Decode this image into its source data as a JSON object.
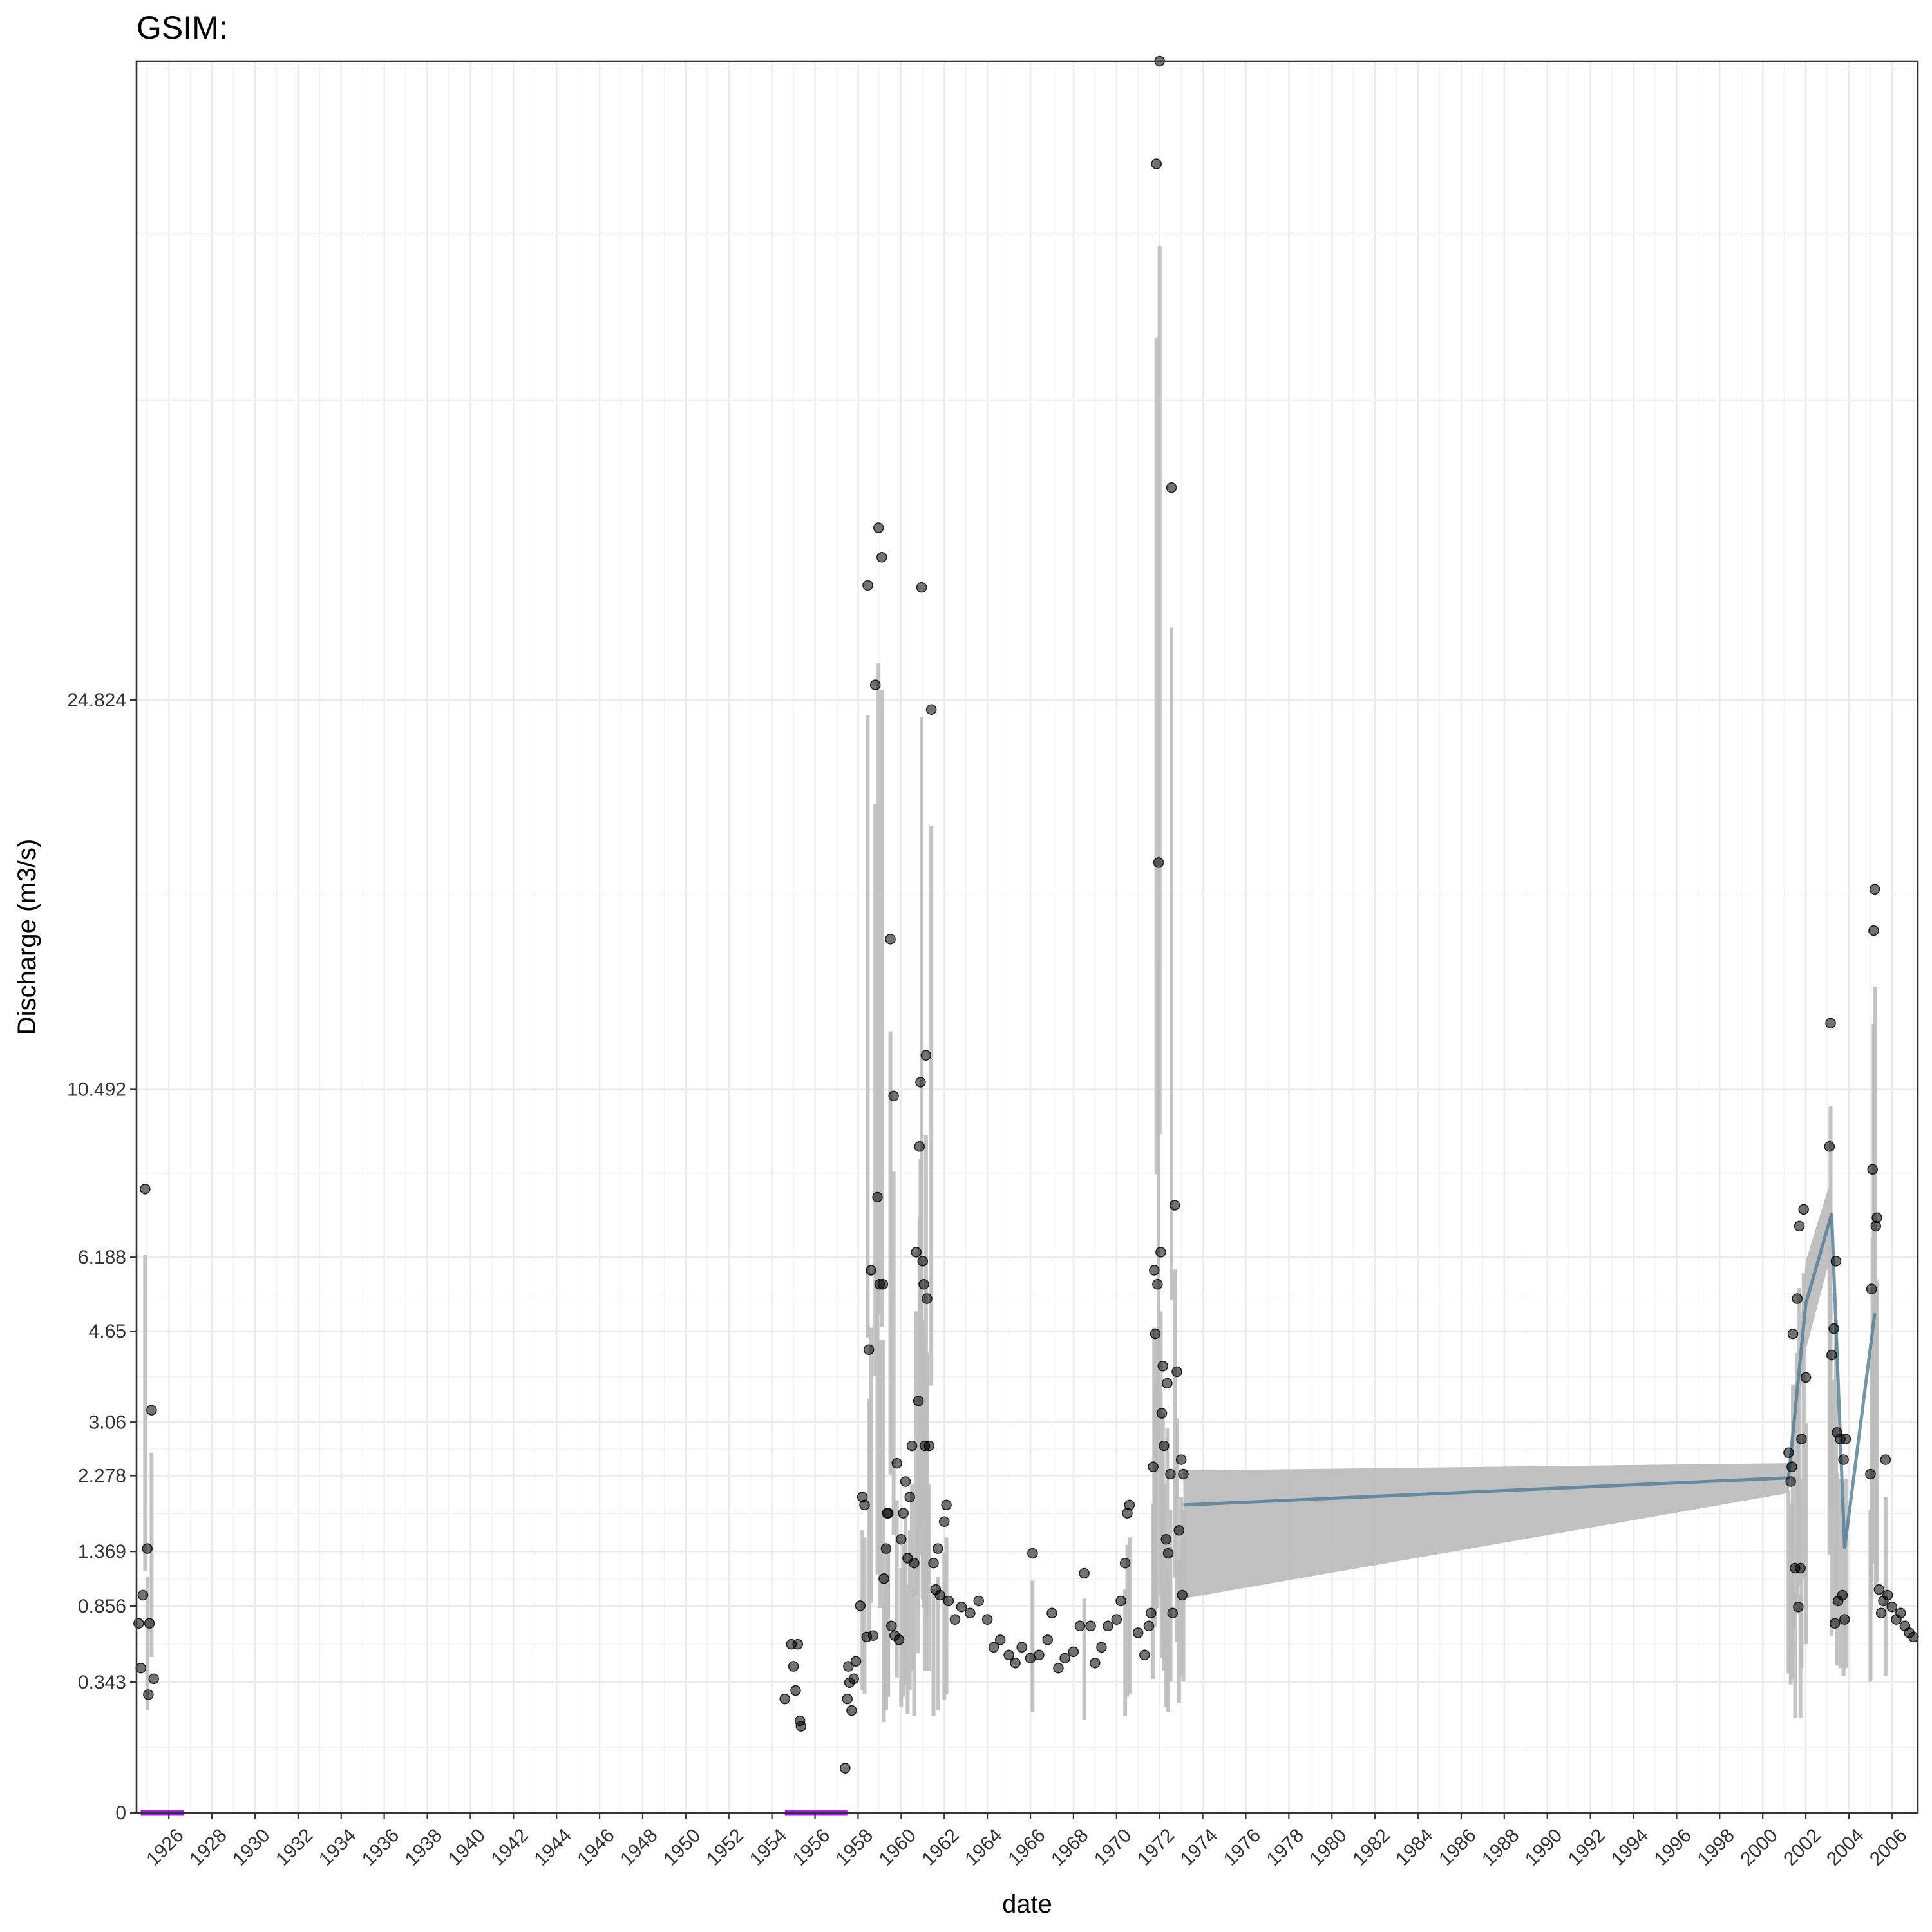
{
  "chart_data": {
    "type": "scatter",
    "title": "GSIM:",
    "xlabel": "date",
    "ylabel": "Discharge (m3/s)",
    "x_range": [
      1924.5,
      2007.2
    ],
    "y_scale": "sqrt",
    "y_range": [
      0,
      61.5
    ],
    "y_ticks": [
      0,
      0.343,
      0.856,
      1.369,
      2.278,
      3.06,
      4.65,
      6.188,
      10.492,
      24.824
    ],
    "x_ticks": [
      "1926",
      "1928",
      "1930",
      "1932",
      "1934",
      "1936",
      "1938",
      "1940",
      "1942",
      "1944",
      "1946",
      "1948",
      "1950",
      "1952",
      "1954",
      "1956",
      "1958",
      "1960",
      "1962",
      "1964",
      "1966",
      "1968",
      "1970",
      "1972",
      "1974",
      "1976",
      "1978",
      "1980",
      "1982",
      "1984",
      "1986",
      "1988",
      "1990",
      "1992",
      "1994",
      "1996",
      "1998",
      "2000",
      "2002",
      "2004",
      "2006"
    ],
    "grid": true,
    "legend": "none",
    "colors": {
      "points": "#000000",
      "ribbon": "#bdbdbd",
      "line": "#4f7a96",
      "flag": "#a020f0"
    },
    "series": [
      {
        "kind": "points",
        "points": [
          [
            1924.6,
            0.72
          ],
          [
            1924.7,
            0.42
          ],
          [
            1924.8,
            0.95
          ],
          [
            1924.9,
            7.8
          ],
          [
            1925.0,
            1.4
          ],
          [
            1925.05,
            0.28
          ],
          [
            1925.1,
            0.72
          ],
          [
            1925.2,
            3.25
          ],
          [
            1925.3,
            0.36
          ],
          [
            1954.6,
            0.26
          ],
          [
            1954.9,
            0.57
          ],
          [
            1955.0,
            0.43
          ],
          [
            1955.1,
            0.3
          ],
          [
            1955.2,
            0.57
          ],
          [
            1955.3,
            0.17
          ],
          [
            1955.35,
            0.15
          ],
          [
            1957.4,
            0.04
          ],
          [
            1957.5,
            0.26
          ],
          [
            1957.55,
            0.43
          ],
          [
            1957.6,
            0.34
          ],
          [
            1957.7,
            0.21
          ],
          [
            1957.8,
            0.36
          ],
          [
            1957.9,
            0.46
          ],
          [
            1958.1,
            0.86
          ],
          [
            1958.2,
            2.0
          ],
          [
            1958.3,
            1.9
          ],
          [
            1958.4,
            0.62
          ],
          [
            1958.45,
            30.2
          ],
          [
            1958.5,
            4.3
          ],
          [
            1958.6,
            5.9
          ],
          [
            1958.7,
            0.63
          ],
          [
            1958.8,
            25.5
          ],
          [
            1958.9,
            7.6
          ],
          [
            1958.95,
            33.1
          ],
          [
            1959.0,
            5.6
          ],
          [
            1959.1,
            31.6
          ],
          [
            1959.15,
            5.6
          ],
          [
            1959.2,
            1.1
          ],
          [
            1959.3,
            1.4
          ],
          [
            1959.35,
            1.8
          ],
          [
            1959.4,
            1.8
          ],
          [
            1959.5,
            15.3
          ],
          [
            1959.55,
            0.7
          ],
          [
            1959.65,
            10.3
          ],
          [
            1959.7,
            0.63
          ],
          [
            1959.8,
            2.45
          ],
          [
            1959.9,
            0.6
          ],
          [
            1960.0,
            1.5
          ],
          [
            1960.1,
            1.8
          ],
          [
            1960.2,
            2.2
          ],
          [
            1960.3,
            1.3
          ],
          [
            1960.4,
            2.0
          ],
          [
            1960.5,
            2.7
          ],
          [
            1960.6,
            1.25
          ],
          [
            1960.7,
            6.3
          ],
          [
            1960.8,
            3.4
          ],
          [
            1960.85,
            8.9
          ],
          [
            1960.9,
            10.7
          ],
          [
            1960.95,
            30.1
          ],
          [
            1961.0,
            6.1
          ],
          [
            1961.05,
            5.6
          ],
          [
            1961.1,
            2.7
          ],
          [
            1961.15,
            11.5
          ],
          [
            1961.2,
            5.3
          ],
          [
            1961.3,
            2.7
          ],
          [
            1961.4,
            24.4
          ],
          [
            1961.5,
            1.25
          ],
          [
            1961.6,
            1.0
          ],
          [
            1961.7,
            1.4
          ],
          [
            1961.8,
            0.95
          ],
          [
            1962.0,
            1.7
          ],
          [
            1962.1,
            1.9
          ],
          [
            1962.2,
            0.9
          ],
          [
            1962.5,
            0.75
          ],
          [
            1962.8,
            0.85
          ],
          [
            1963.2,
            0.8
          ],
          [
            1963.6,
            0.9
          ],
          [
            1964.0,
            0.75
          ],
          [
            1964.3,
            0.55
          ],
          [
            1964.6,
            0.6
          ],
          [
            1965.0,
            0.5
          ],
          [
            1965.3,
            0.45
          ],
          [
            1965.6,
            0.55
          ],
          [
            1966.0,
            0.48
          ],
          [
            1966.1,
            1.35
          ],
          [
            1966.4,
            0.5
          ],
          [
            1966.8,
            0.6
          ],
          [
            1967.0,
            0.8
          ],
          [
            1967.3,
            0.42
          ],
          [
            1967.6,
            0.48
          ],
          [
            1968.0,
            0.52
          ],
          [
            1968.3,
            0.7
          ],
          [
            1968.5,
            1.15
          ],
          [
            1968.8,
            0.7
          ],
          [
            1969.0,
            0.45
          ],
          [
            1969.3,
            0.55
          ],
          [
            1969.6,
            0.7
          ],
          [
            1970.0,
            0.75
          ],
          [
            1970.2,
            0.9
          ],
          [
            1970.4,
            1.25
          ],
          [
            1970.5,
            1.8
          ],
          [
            1970.6,
            1.9
          ],
          [
            1971.0,
            0.65
          ],
          [
            1971.3,
            0.5
          ],
          [
            1971.5,
            0.7
          ],
          [
            1971.6,
            0.8
          ],
          [
            1971.7,
            2.4
          ],
          [
            1971.75,
            5.9
          ],
          [
            1971.8,
            4.6
          ],
          [
            1971.85,
            54.5
          ],
          [
            1971.9,
            5.6
          ],
          [
            1971.95,
            18.1
          ],
          [
            1972.0,
            61.5
          ],
          [
            1972.05,
            6.3
          ],
          [
            1972.1,
            3.2
          ],
          [
            1972.15,
            4.0
          ],
          [
            1972.2,
            2.7
          ],
          [
            1972.3,
            1.5
          ],
          [
            1972.35,
            3.7
          ],
          [
            1972.4,
            1.35
          ],
          [
            1972.5,
            2.3
          ],
          [
            1972.55,
            35.2
          ],
          [
            1972.6,
            0.8
          ],
          [
            1972.7,
            7.4
          ],
          [
            1972.8,
            3.9
          ],
          [
            1972.9,
            1.6
          ],
          [
            1973.0,
            2.5
          ],
          [
            1973.05,
            0.95
          ],
          [
            1973.1,
            2.3
          ],
          [
            2001.2,
            2.6
          ],
          [
            2001.3,
            2.2
          ],
          [
            2001.35,
            2.4
          ],
          [
            2001.4,
            4.6
          ],
          [
            2001.5,
            1.2
          ],
          [
            2001.6,
            5.3
          ],
          [
            2001.65,
            0.85
          ],
          [
            2001.7,
            6.9
          ],
          [
            2001.75,
            1.2
          ],
          [
            2001.8,
            2.8
          ],
          [
            2001.9,
            7.3
          ],
          [
            2002.0,
            3.8
          ],
          [
            2003.1,
            8.9
          ],
          [
            2003.15,
            12.5
          ],
          [
            2003.2,
            4.2
          ],
          [
            2003.3,
            4.7
          ],
          [
            2003.35,
            0.72
          ],
          [
            2003.4,
            6.1
          ],
          [
            2003.45,
            2.9
          ],
          [
            2003.5,
            0.9
          ],
          [
            2003.6,
            2.8
          ],
          [
            2003.7,
            0.95
          ],
          [
            2003.75,
            2.5
          ],
          [
            2003.8,
            0.75
          ],
          [
            2003.85,
            2.8
          ],
          [
            2005.0,
            2.3
          ],
          [
            2005.05,
            5.5
          ],
          [
            2005.1,
            8.3
          ],
          [
            2005.15,
            15.6
          ],
          [
            2005.2,
            17.1
          ],
          [
            2005.25,
            6.9
          ],
          [
            2005.3,
            7.1
          ],
          [
            2005.4,
            1.0
          ],
          [
            2005.5,
            0.8
          ],
          [
            2005.6,
            0.9
          ],
          [
            2005.7,
            2.5
          ],
          [
            2005.8,
            0.95
          ],
          [
            2006.0,
            0.85
          ],
          [
            2006.2,
            0.75
          ],
          [
            2006.4,
            0.8
          ],
          [
            2006.6,
            0.7
          ],
          [
            2006.8,
            0.65
          ],
          [
            2007.0,
            0.62
          ]
        ]
      },
      {
        "kind": "line",
        "points": [
          [
            1973.1,
            1.9
          ],
          [
            2001.2,
            2.25
          ],
          [
            2002.0,
            5.2
          ],
          [
            2003.2,
            7.2
          ],
          [
            2003.8,
            1.4
          ],
          [
            2005.2,
            5.0
          ]
        ]
      },
      {
        "kind": "ribbon",
        "upper": [
          [
            1973.1,
            2.35
          ],
          [
            2001.2,
            2.45
          ],
          [
            2002.0,
            6.1
          ],
          [
            2003.2,
            8.1
          ]
        ],
        "lower": [
          [
            1973.1,
            0.92
          ],
          [
            2001.2,
            2.05
          ],
          [
            2002.0,
            4.3
          ],
          [
            2003.2,
            6.3
          ]
        ]
      },
      {
        "kind": "flag",
        "segments": [
          [
            1924.7,
            1926.7
          ],
          [
            1954.6,
            1957.5
          ]
        ]
      }
    ]
  }
}
